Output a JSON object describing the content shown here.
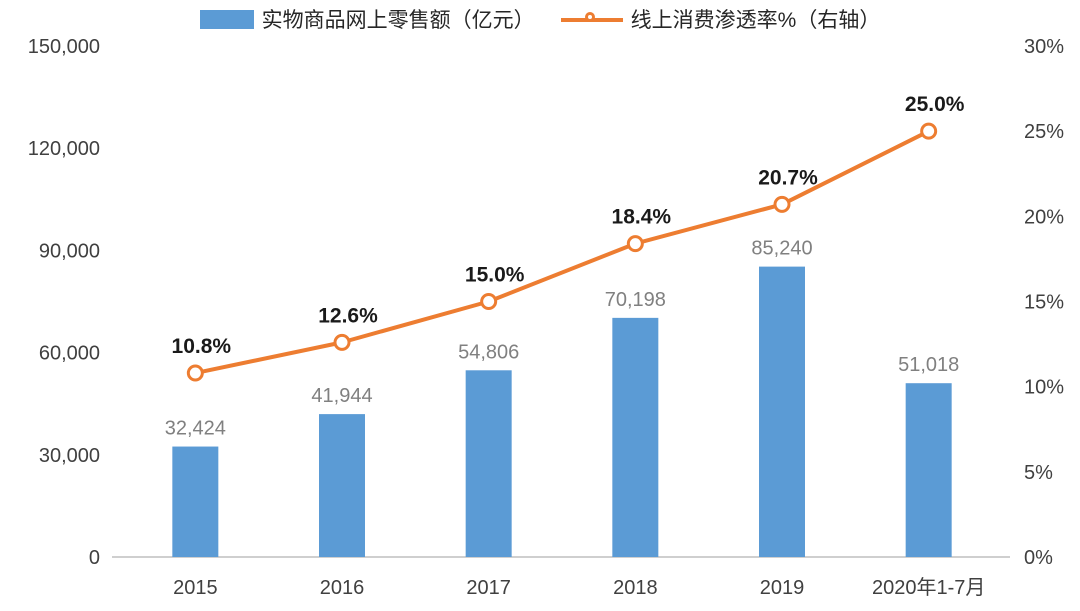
{
  "chart_data": {
    "type": "combo",
    "categories": [
      "2015",
      "2016",
      "2017",
      "2018",
      "2019",
      "2020年1-7月"
    ],
    "series": [
      {
        "name": "实物商品网上零售额（亿元）",
        "type": "bar",
        "axis": "left",
        "color": "#5B9BD5",
        "values": [
          32424,
          41944,
          54806,
          70198,
          85240,
          51018
        ],
        "labels": [
          "32,424",
          "41,944",
          "54,806",
          "70,198",
          "85,240",
          "51,018"
        ]
      },
      {
        "name": "线上消费渗透率%（右轴）",
        "type": "line",
        "axis": "right",
        "color": "#ED7D31",
        "values": [
          10.8,
          12.6,
          15.0,
          18.4,
          20.7,
          25.0
        ],
        "labels": [
          "10.8%",
          "12.6%",
          "15.0%",
          "18.4%",
          "20.7%",
          "25.0%"
        ]
      }
    ],
    "left_axis": {
      "min": 0,
      "max": 150000,
      "step": 30000,
      "tick_labels": [
        "0",
        "30,000",
        "60,000",
        "90,000",
        "120,000",
        "150,000"
      ]
    },
    "right_axis": {
      "min": 0,
      "max": 30,
      "step": 5,
      "tick_labels": [
        "0%",
        "5%",
        "10%",
        "15%",
        "20%",
        "25%",
        "30%"
      ]
    },
    "grid": false,
    "legend_position": "top",
    "colors": {
      "bar": "#5B9BD5",
      "line": "#ED7D31",
      "axis_text": "#404040",
      "bar_label": "#808080",
      "line_label": "#1A1A1A",
      "axis_line": "#BFBFBF",
      "marker_fill": "#FFFFFF"
    }
  }
}
